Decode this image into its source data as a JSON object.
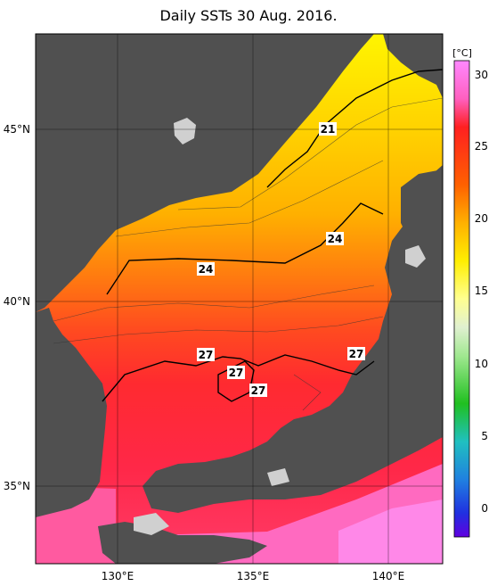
{
  "title": "Daily SSTs 30 Aug. 2016.",
  "lat_labels": [
    "45°N",
    "40°N",
    "35°N"
  ],
  "lon_labels": [
    "130°E",
    "135°E",
    "140°E"
  ],
  "colorbar": {
    "unit": "[°C]",
    "ticks": [
      "30",
      "25",
      "20",
      "15",
      "10",
      "5",
      "0"
    ]
  },
  "contour_labels": {
    "c21": "21",
    "c24a": "24",
    "c24b": "24",
    "c27a": "27",
    "c27b": "27",
    "c27c": "27",
    "c27d": "27"
  },
  "colors": {
    "land": "#505050",
    "ice_or_missing": "#d0d0d0"
  }
}
